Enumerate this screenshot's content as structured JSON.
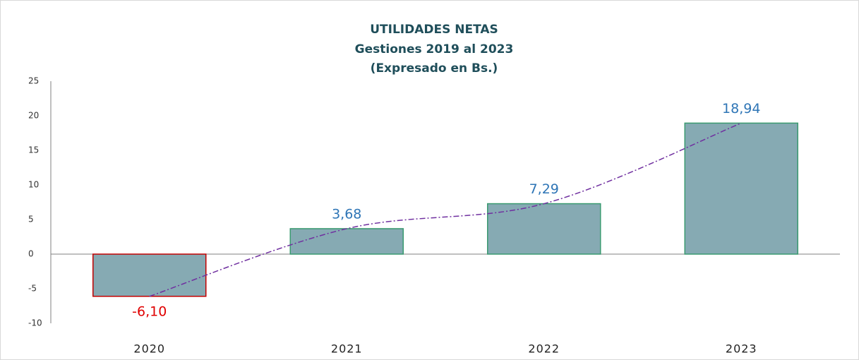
{
  "chart_data": {
    "type": "bar",
    "title": "UTILIDADES NETAS",
    "subtitle": "Gestiones 2019 al 2023",
    "note": "(Expresado en Bs.)",
    "categories": [
      "2020",
      "2021",
      "2022",
      "2023"
    ],
    "values": [
      -6.1,
      3.68,
      7.29,
      18.94
    ],
    "value_labels": [
      "-6,10",
      "3,68",
      "7,29",
      "18,94"
    ],
    "color": "#86aab3",
    "edgecolor": "#3a9a70",
    "negative_edgecolor": "#c00000",
    "label_color": "#2e75b6",
    "negative_label_color": "#e00000",
    "trendline": true,
    "trendline_color": "#7030a0",
    "ylim": [
      -10,
      25
    ],
    "yticks": [
      -10,
      -5,
      0,
      5,
      10,
      15,
      20,
      25
    ]
  }
}
